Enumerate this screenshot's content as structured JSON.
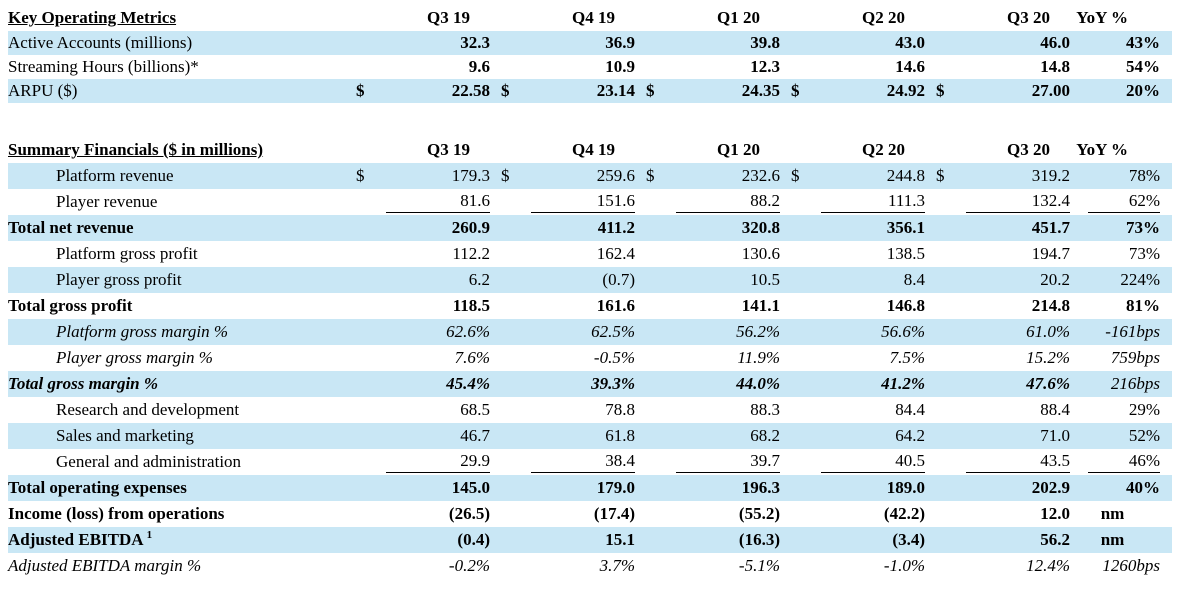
{
  "page": {
    "background": "#ffffff",
    "stripe_color": "#c9e7f5",
    "text_color": "#000000"
  },
  "columns": {
    "quarters": [
      "Q3 19",
      "Q4 19",
      "Q1 20",
      "Q2 20",
      "Q3 20"
    ],
    "yoy_label": "YoY %"
  },
  "tables": [
    {
      "title": "Key Operating Metrics",
      "rows": [
        {
          "label": "Active Accounts (millions)",
          "stripe": true,
          "valueStyle": "b",
          "yoyStyle": "b",
          "values": [
            "32.3",
            "36.9",
            "39.8",
            "43.0",
            "46.0"
          ],
          "yoy": "43%"
        },
        {
          "label": "Streaming Hours (billions)*",
          "valueStyle": "b",
          "yoyStyle": "b",
          "values": [
            "9.6",
            "10.9",
            "12.3",
            "14.6",
            "14.8"
          ],
          "yoy": "54%"
        },
        {
          "label": "ARPU ($)",
          "stripe": true,
          "dollar": true,
          "valueStyle": "b",
          "yoyStyle": "b",
          "values": [
            "22.58",
            "23.14",
            "24.35",
            "24.92",
            "27.00"
          ],
          "yoy": "20%"
        }
      ]
    },
    {
      "title": "Summary Financials ($ in millions)",
      "rows": [
        {
          "label": "Platform revenue",
          "indent": true,
          "stripe": true,
          "dollar": true,
          "values": [
            "179.3",
            "259.6",
            "232.6",
            "244.8",
            "319.2"
          ],
          "yoy": "78%"
        },
        {
          "label": "Player revenue",
          "indent": true,
          "sumline": true,
          "values": [
            "81.6",
            "151.6",
            "88.2",
            "111.3",
            "132.4"
          ],
          "yoy": "62%"
        },
        {
          "label": "Total net revenue",
          "stripe": true,
          "labelStyle": "b",
          "valueStyle": "b",
          "yoyStyle": "b",
          "values": [
            "260.9",
            "411.2",
            "320.8",
            "356.1",
            "451.7"
          ],
          "yoy": "73%"
        },
        {
          "label": "Platform gross profit",
          "indent": true,
          "values": [
            "112.2",
            "162.4",
            "130.6",
            "138.5",
            "194.7"
          ],
          "yoy": "73%"
        },
        {
          "label": "Player gross profit",
          "indent": true,
          "stripe": true,
          "values": [
            "6.2",
            "(0.7)",
            "10.5",
            "8.4",
            "20.2"
          ],
          "yoy": "224%"
        },
        {
          "label": "Total gross profit",
          "labelStyle": "b",
          "valueStyle": "b",
          "yoyStyle": "b",
          "values": [
            "118.5",
            "161.6",
            "141.1",
            "146.8",
            "214.8"
          ],
          "yoy": "81%"
        },
        {
          "label": "Platform gross margin %",
          "indent": true,
          "stripe": true,
          "labelStyle": "i",
          "valueStyle": "i",
          "yoyStyle": "i",
          "values": [
            "62.6%",
            "62.5%",
            "56.2%",
            "56.6%",
            "61.0%"
          ],
          "yoy": "-161bps"
        },
        {
          "label": "Player gross margin %",
          "indent": true,
          "labelStyle": "i",
          "valueStyle": "i",
          "yoyStyle": "i",
          "values": [
            "7.6%",
            "-0.5%",
            "11.9%",
            "7.5%",
            "15.2%"
          ],
          "yoy": "759bps"
        },
        {
          "label": "Total gross margin %",
          "stripe": true,
          "labelStyle": "bi",
          "valueStyle": "bi",
          "yoyStyle": "i",
          "values": [
            "45.4%",
            "39.3%",
            "44.0%",
            "41.2%",
            "47.6%"
          ],
          "yoy": "216bps"
        },
        {
          "label": "Research and development",
          "indent": true,
          "values": [
            "68.5",
            "78.8",
            "88.3",
            "84.4",
            "88.4"
          ],
          "yoy": "29%"
        },
        {
          "label": "Sales and marketing",
          "indent": true,
          "stripe": true,
          "values": [
            "46.7",
            "61.8",
            "68.2",
            "64.2",
            "71.0"
          ],
          "yoy": "52%"
        },
        {
          "label": "General and administration",
          "indent": true,
          "sumline": true,
          "values": [
            "29.9",
            "38.4",
            "39.7",
            "40.5",
            "43.5"
          ],
          "yoy": "46%"
        },
        {
          "label": "Total operating expenses",
          "stripe": true,
          "labelStyle": "b",
          "valueStyle": "b",
          "yoyStyle": "b",
          "values": [
            "145.0",
            "179.0",
            "196.3",
            "189.0",
            "202.9"
          ],
          "yoy": "40%"
        },
        {
          "label": "Income (loss) from operations",
          "labelStyle": "b",
          "valueStyle": "b",
          "yoyStyle": "b",
          "yoyCenter": true,
          "values": [
            "(26.5)",
            "(17.4)",
            "(55.2)",
            "(42.2)",
            "12.0"
          ],
          "yoy": "nm"
        },
        {
          "label": "Adjusted EBITDA",
          "sup": "1",
          "stripe": true,
          "labelStyle": "b",
          "valueStyle": "b",
          "yoyStyle": "b",
          "yoyCenter": true,
          "values": [
            "(0.4)",
            "15.1",
            "(16.3)",
            "(3.4)",
            "56.2"
          ],
          "yoy": "nm"
        },
        {
          "label": "Adjusted EBITDA margin %",
          "labelStyle": "i",
          "valueStyle": "i",
          "yoyStyle": "i",
          "values": [
            "-0.2%",
            "3.7%",
            "-5.1%",
            "-1.0%",
            "12.4%"
          ],
          "yoy": "1260bps"
        }
      ]
    }
  ]
}
